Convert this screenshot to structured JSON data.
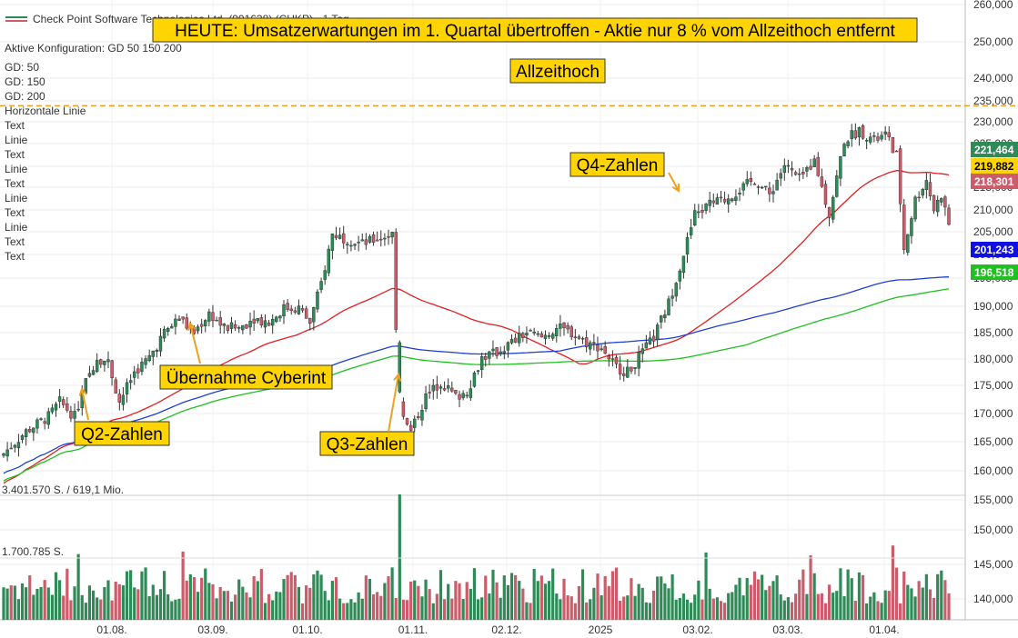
{
  "header": {
    "title": "Check Point Software Technologies Ltd. (901638) (CHKP) - 1 Tag",
    "config": "Aktive Konfiguration: GD 50 150 200",
    "ma_labels": [
      {
        "text": "GD: 50",
        "color": "#e02020"
      },
      {
        "text": "GD: 150",
        "color": "#2040d0"
      },
      {
        "text": "GD: 200",
        "color": "#20b020"
      }
    ],
    "tool_items": [
      {
        "text": "Horizontale Linie",
        "color": "#f0a020"
      },
      {
        "text": "Text",
        "color": "#333333"
      },
      {
        "text": "Linie",
        "color": "#f0a020"
      },
      {
        "text": "Text",
        "color": "#333333"
      },
      {
        "text": "Linie",
        "color": "#f0a020"
      },
      {
        "text": "Text",
        "color": "#333333"
      },
      {
        "text": "Linie",
        "color": "#f0a020"
      },
      {
        "text": "Text",
        "color": "#333333"
      },
      {
        "text": "Linie",
        "color": "#f0a020"
      },
      {
        "text": "Text",
        "color": "#333333"
      },
      {
        "text": "Text",
        "color": "#333333"
      }
    ],
    "volume_labels": [
      "3.401.570 S. / 619,1 Mio.",
      "1.700.785 S."
    ]
  },
  "chart_data": {
    "type": "candlestick",
    "yticks": [
      "260,000",
      "250,000",
      "240,000",
      "235,000",
      "230,000",
      "225,000",
      "220,000",
      "215,000",
      "210,000",
      "205,000",
      "200,000",
      "195,000",
      "190,000",
      "185,000",
      "180,000",
      "175,000",
      "170,000",
      "165,000",
      "160,000",
      "155,000",
      "150,000",
      "145,000",
      "140,000"
    ],
    "xticks": [
      "01.08.",
      "03.09.",
      "01.10.",
      "01.11.",
      "02.12.",
      "2025",
      "03.02.",
      "03.03.",
      "01.04."
    ],
    "price_badges": [
      {
        "value": "221,464",
        "color": "#2e8b57"
      },
      {
        "value": "219,882",
        "color": "#ffd400"
      },
      {
        "value": "218,301",
        "color": "#cd5c6a"
      },
      {
        "value": "201,243",
        "color": "#1010e0"
      },
      {
        "value": "196,518",
        "color": "#20c020"
      }
    ],
    "all_time_high_level": 234,
    "ma_colors": {
      "gd50": "#e02020",
      "gd150": "#2040d0",
      "gd200": "#20c020"
    },
    "candle_up_color": "#2e8b57",
    "candle_down_color": "#cd5c6a",
    "annotations": [
      "HEUTE: Umsatzerwartungen im 1. Quartal übertroffen - Aktie nur 8 % vom Allzeithoch entfernt",
      "Allzeithoch",
      "Q4-Zahlen",
      "Übernahme Cyberint",
      "Q2-Zahlen",
      "Q3-Zahlen"
    ]
  }
}
